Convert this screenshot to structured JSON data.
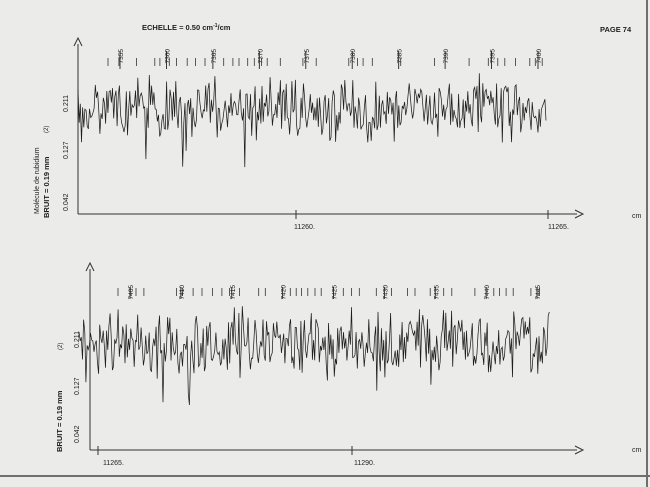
{
  "header": {
    "scale_label": "ECHELLE = 0.50 cm",
    "scale_exp": "-1",
    "scale_suffix": "/cm",
    "page_label": "PAGE 74"
  },
  "chart_data": [
    {
      "type": "line",
      "xlabel": "cm",
      "ylabel": "BRUIT = 0.19 mm",
      "side_label": "Molécule de rubidium",
      "y_mark": "(2)",
      "ytick_labels": [
        "0.211",
        "0.127",
        "0.042"
      ],
      "xtick_labels": [
        "11260.",
        "11265."
      ],
      "line_labels": [
        "7355",
        "7360",
        "7365",
        "7370",
        "7375",
        "7380",
        "7385",
        "7390",
        "7395",
        "7400"
      ],
      "trace_seed": 7
    },
    {
      "type": "line",
      "xlabel": "cm",
      "ylabel": "BRUIT = 0.19 mm",
      "y_mark": "(2)",
      "ytick_labels": [
        "0.211",
        "0.127",
        "0.042"
      ],
      "xtick_labels": [
        "11265.",
        "11290."
      ],
      "line_labels": [
        "7405",
        "7410",
        "7415",
        "7420",
        "7425",
        "7430",
        "7435",
        "7440",
        "7445"
      ],
      "trace_seed": 21
    }
  ]
}
